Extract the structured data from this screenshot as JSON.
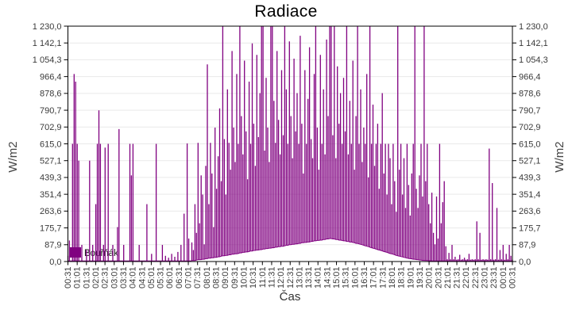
{
  "title": "Radiace",
  "xlabel": "Čas",
  "ylabel_left": "W/m2",
  "ylabel_right": "W/m2",
  "legend": {
    "label": "Bouřňák",
    "color": "#800080",
    "position": "bottom-left-inside"
  },
  "colors": {
    "series": "#800080",
    "grid": "#e9e9e9",
    "frame": "#000000",
    "tick_text": "#3a3a3a",
    "background": "#ffffff"
  },
  "chart_data": {
    "type": "bar",
    "title": "Radiace",
    "xlabel": "Čas",
    "ylabel": "W/m2",
    "series_name": "Bouřňák",
    "ylim": [
      0,
      1230
    ],
    "grid": "horizontal",
    "legend_position": "bottom-left-inside",
    "y_tick_labels": [
      "1 230,0",
      "1 142,1",
      "1 054,3",
      "966,4",
      "878,6",
      "790,7",
      "702,9",
      "615,0",
      "527,1",
      "439,3",
      "351,4",
      "263,6",
      "175,7",
      "87,9",
      "0,0"
    ],
    "y_tick_values": [
      1230.0,
      1142.1,
      1054.3,
      966.4,
      878.6,
      790.7,
      702.9,
      615.0,
      527.1,
      439.3,
      351.4,
      263.6,
      175.7,
      87.9,
      0.0
    ],
    "x_tick_labels": [
      "00:31",
      "01:01",
      "01:31",
      "02:01",
      "02:31",
      "03:01",
      "03:31",
      "04:01",
      "04:31",
      "05:01",
      "05:31",
      "06:01",
      "06:31",
      "07:01",
      "07:31",
      "08:01",
      "08:31",
      "09:01",
      "09:31",
      "10:01",
      "10:31",
      "11:01",
      "11:31",
      "12:01",
      "12:31",
      "13:01",
      "13:31",
      "14:01",
      "14:31",
      "15:01",
      "15:31",
      "16:01",
      "16:31",
      "17:01",
      "17:31",
      "18:01",
      "18:31",
      "19:01",
      "19:31",
      "20:01",
      "20:31",
      "21:01",
      "21:31",
      "22:01",
      "22:31",
      "23:01",
      "23:31",
      "00:01",
      "00:31"
    ],
    "start_time": "00:31",
    "sample_interval_minutes": 5,
    "samples_min_max": [
      [
        0,
        30
      ],
      [
        0,
        110
      ],
      [
        0,
        0
      ],
      [
        0,
        615
      ],
      [
        0,
        980
      ],
      [
        0,
        940
      ],
      [
        0,
        615
      ],
      [
        0,
        527
      ],
      [
        0,
        0
      ],
      [
        0,
        87
      ],
      [
        0,
        0
      ],
      [
        0,
        0
      ],
      [
        0,
        60
      ],
      [
        0,
        0
      ],
      [
        0,
        527
      ],
      [
        0,
        0
      ],
      [
        0,
        87
      ],
      [
        0,
        0
      ],
      [
        0,
        300
      ],
      [
        0,
        615
      ],
      [
        0,
        790
      ],
      [
        0,
        615
      ],
      [
        0,
        0
      ],
      [
        0,
        87
      ],
      [
        0,
        595
      ],
      [
        0,
        0
      ],
      [
        0,
        615
      ],
      [
        0,
        0
      ],
      [
        0,
        0
      ],
      [
        0,
        87
      ],
      [
        0,
        0
      ],
      [
        0,
        0
      ],
      [
        0,
        180
      ],
      [
        0,
        692
      ],
      [
        0,
        0
      ],
      [
        0,
        0
      ],
      [
        0,
        87
      ],
      [
        0,
        0
      ],
      [
        0,
        0
      ],
      [
        0,
        0
      ],
      [
        0,
        615
      ],
      [
        0,
        450
      ],
      [
        0,
        615
      ],
      [
        0,
        0
      ],
      [
        0,
        0
      ],
      [
        0,
        0
      ],
      [
        0,
        87
      ],
      [
        0,
        0
      ],
      [
        0,
        0
      ],
      [
        0,
        0
      ],
      [
        0,
        0
      ],
      [
        0,
        300
      ],
      [
        0,
        0
      ],
      [
        0,
        0
      ],
      [
        0,
        40
      ],
      [
        0,
        0
      ],
      [
        0,
        0
      ],
      [
        0,
        615
      ],
      [
        0,
        0
      ],
      [
        0,
        0
      ],
      [
        0,
        0
      ],
      [
        0,
        87
      ],
      [
        0,
        0
      ],
      [
        0,
        30
      ],
      [
        0,
        0
      ],
      [
        0,
        20
      ],
      [
        0,
        0
      ],
      [
        0,
        40
      ],
      [
        0,
        0
      ],
      [
        0,
        25
      ],
      [
        0,
        0
      ],
      [
        0,
        50
      ],
      [
        0,
        0
      ],
      [
        0,
        87
      ],
      [
        0,
        0
      ],
      [
        0,
        250
      ],
      [
        0,
        0
      ],
      [
        0,
        617
      ],
      [
        0,
        120
      ],
      [
        0,
        0
      ],
      [
        5,
        100
      ],
      [
        5,
        60
      ],
      [
        5,
        300
      ],
      [
        8,
        150
      ],
      [
        10,
        620
      ],
      [
        10,
        200
      ],
      [
        10,
        450
      ],
      [
        12,
        350
      ],
      [
        12,
        90
      ],
      [
        15,
        500
      ],
      [
        15,
        1030
      ],
      [
        18,
        300
      ],
      [
        18,
        620
      ],
      [
        20,
        460
      ],
      [
        20,
        180
      ],
      [
        22,
        700
      ],
      [
        22,
        380
      ],
      [
        25,
        550
      ],
      [
        25,
        800
      ],
      [
        28,
        420
      ],
      [
        30,
        1230
      ],
      [
        30,
        640
      ],
      [
        32,
        350
      ],
      [
        32,
        900
      ],
      [
        35,
        620
      ],
      [
        35,
        480
      ],
      [
        38,
        1100
      ],
      [
        38,
        700
      ],
      [
        40,
        520
      ],
      [
        40,
        980
      ],
      [
        42,
        615
      ],
      [
        45,
        1230
      ],
      [
        45,
        760
      ],
      [
        48,
        560
      ],
      [
        48,
        1050
      ],
      [
        50,
        680
      ],
      [
        50,
        430
      ],
      [
        52,
        940
      ],
      [
        55,
        615
      ],
      [
        55,
        1140
      ],
      [
        58,
        720
      ],
      [
        58,
        500
      ],
      [
        60,
        1080
      ],
      [
        60,
        650
      ],
      [
        62,
        880
      ],
      [
        62,
        1230
      ],
      [
        65,
        1230
      ],
      [
        65,
        580
      ],
      [
        68,
        960
      ],
      [
        68,
        700
      ],
      [
        70,
        520
      ],
      [
        70,
        1230
      ],
      [
        72,
        1230
      ],
      [
        72,
        840
      ],
      [
        75,
        620
      ],
      [
        75,
        1100
      ],
      [
        78,
        740
      ],
      [
        78,
        560
      ],
      [
        80,
        1000
      ],
      [
        80,
        660
      ],
      [
        82,
        1230
      ],
      [
        85,
        900
      ],
      [
        85,
        615
      ],
      [
        88,
        1150
      ],
      [
        88,
        760
      ],
      [
        90,
        540
      ],
      [
        90,
        1060
      ],
      [
        92,
        680
      ],
      [
        92,
        880
      ],
      [
        95,
        615
      ],
      [
        95,
        1180
      ],
      [
        98,
        720
      ],
      [
        98,
        460
      ],
      [
        100,
        1000
      ],
      [
        100,
        615
      ],
      [
        102,
        850
      ],
      [
        102,
        1120
      ],
      [
        105,
        640
      ],
      [
        105,
        540
      ],
      [
        108,
        980
      ],
      [
        108,
        1230
      ],
      [
        110,
        700
      ],
      [
        110,
        480
      ],
      [
        112,
        1080
      ],
      [
        112,
        615
      ],
      [
        115,
        900
      ],
      [
        115,
        560
      ],
      [
        118,
        1160
      ],
      [
        118,
        760
      ],
      [
        120,
        1230
      ],
      [
        120,
        1230
      ],
      [
        118,
        660
      ],
      [
        118,
        1230
      ],
      [
        115,
        540
      ],
      [
        115,
        1020
      ],
      [
        112,
        720
      ],
      [
        112,
        880
      ],
      [
        110,
        615
      ],
      [
        108,
        960
      ],
      [
        108,
        680
      ],
      [
        105,
        1230
      ],
      [
        105,
        560
      ],
      [
        102,
        840
      ],
      [
        102,
        615
      ],
      [
        100,
        1050
      ],
      [
        98,
        480
      ],
      [
        95,
        760
      ],
      [
        95,
        1230
      ],
      [
        92,
        615
      ],
      [
        90,
        900
      ],
      [
        88,
        520
      ],
      [
        85,
        700
      ],
      [
        82,
        615
      ],
      [
        80,
        980
      ],
      [
        78,
        440
      ],
      [
        75,
        1230
      ],
      [
        72,
        615
      ],
      [
        70,
        820
      ],
      [
        68,
        500
      ],
      [
        65,
        615
      ],
      [
        62,
        720
      ],
      [
        60,
        380
      ],
      [
        58,
        615
      ],
      [
        55,
        880
      ],
      [
        52,
        460
      ],
      [
        50,
        615
      ],
      [
        48,
        350
      ],
      [
        45,
        615
      ],
      [
        42,
        540
      ],
      [
        40,
        300
      ],
      [
        38,
        615
      ],
      [
        35,
        420
      ],
      [
        32,
        260
      ],
      [
        30,
        1230
      ],
      [
        28,
        480
      ],
      [
        26,
        615
      ],
      [
        24,
        350
      ],
      [
        22,
        540
      ],
      [
        20,
        280
      ],
      [
        18,
        615
      ],
      [
        16,
        400
      ],
      [
        15,
        240
      ],
      [
        14,
        460
      ],
      [
        12,
        615
      ],
      [
        12,
        1230
      ],
      [
        10,
        380
      ],
      [
        10,
        280
      ],
      [
        8,
        450
      ],
      [
        8,
        615
      ],
      [
        6,
        340
      ],
      [
        6,
        1230
      ],
      [
        5,
        420
      ],
      [
        5,
        615
      ],
      [
        4,
        300
      ],
      [
        4,
        200
      ],
      [
        3,
        360
      ],
      [
        3,
        150
      ],
      [
        0,
        90
      ],
      [
        0,
        340
      ],
      [
        0,
        120
      ],
      [
        0,
        615
      ],
      [
        0,
        200
      ],
      [
        0,
        310
      ],
      [
        0,
        420
      ],
      [
        0,
        80
      ],
      [
        0,
        12
      ],
      [
        0,
        45
      ],
      [
        0,
        12
      ],
      [
        0,
        87
      ],
      [
        0,
        12
      ],
      [
        0,
        25
      ],
      [
        0,
        10
      ],
      [
        0,
        12
      ],
      [
        0,
        35
      ],
      [
        0,
        10
      ],
      [
        0,
        12
      ],
      [
        0,
        20
      ],
      [
        0,
        10
      ],
      [
        0,
        12
      ],
      [
        0,
        40
      ],
      [
        0,
        10
      ],
      [
        0,
        12
      ],
      [
        0,
        10
      ],
      [
        0,
        12
      ],
      [
        0,
        210
      ],
      [
        0,
        12
      ],
      [
        0,
        150
      ],
      [
        0,
        10
      ],
      [
        0,
        12
      ],
      [
        0,
        10
      ],
      [
        0,
        12
      ],
      [
        0,
        10
      ],
      [
        0,
        590
      ],
      [
        0,
        12
      ],
      [
        0,
        410
      ],
      [
        0,
        10
      ],
      [
        0,
        12
      ],
      [
        0,
        280
      ],
      [
        0,
        10
      ],
      [
        0,
        60
      ],
      [
        0,
        12
      ],
      [
        0,
        87
      ],
      [
        0,
        10
      ],
      [
        0,
        40
      ],
      [
        0,
        12
      ],
      [
        0,
        87
      ],
      [
        0,
        30
      ],
      [
        0,
        10
      ]
    ]
  }
}
